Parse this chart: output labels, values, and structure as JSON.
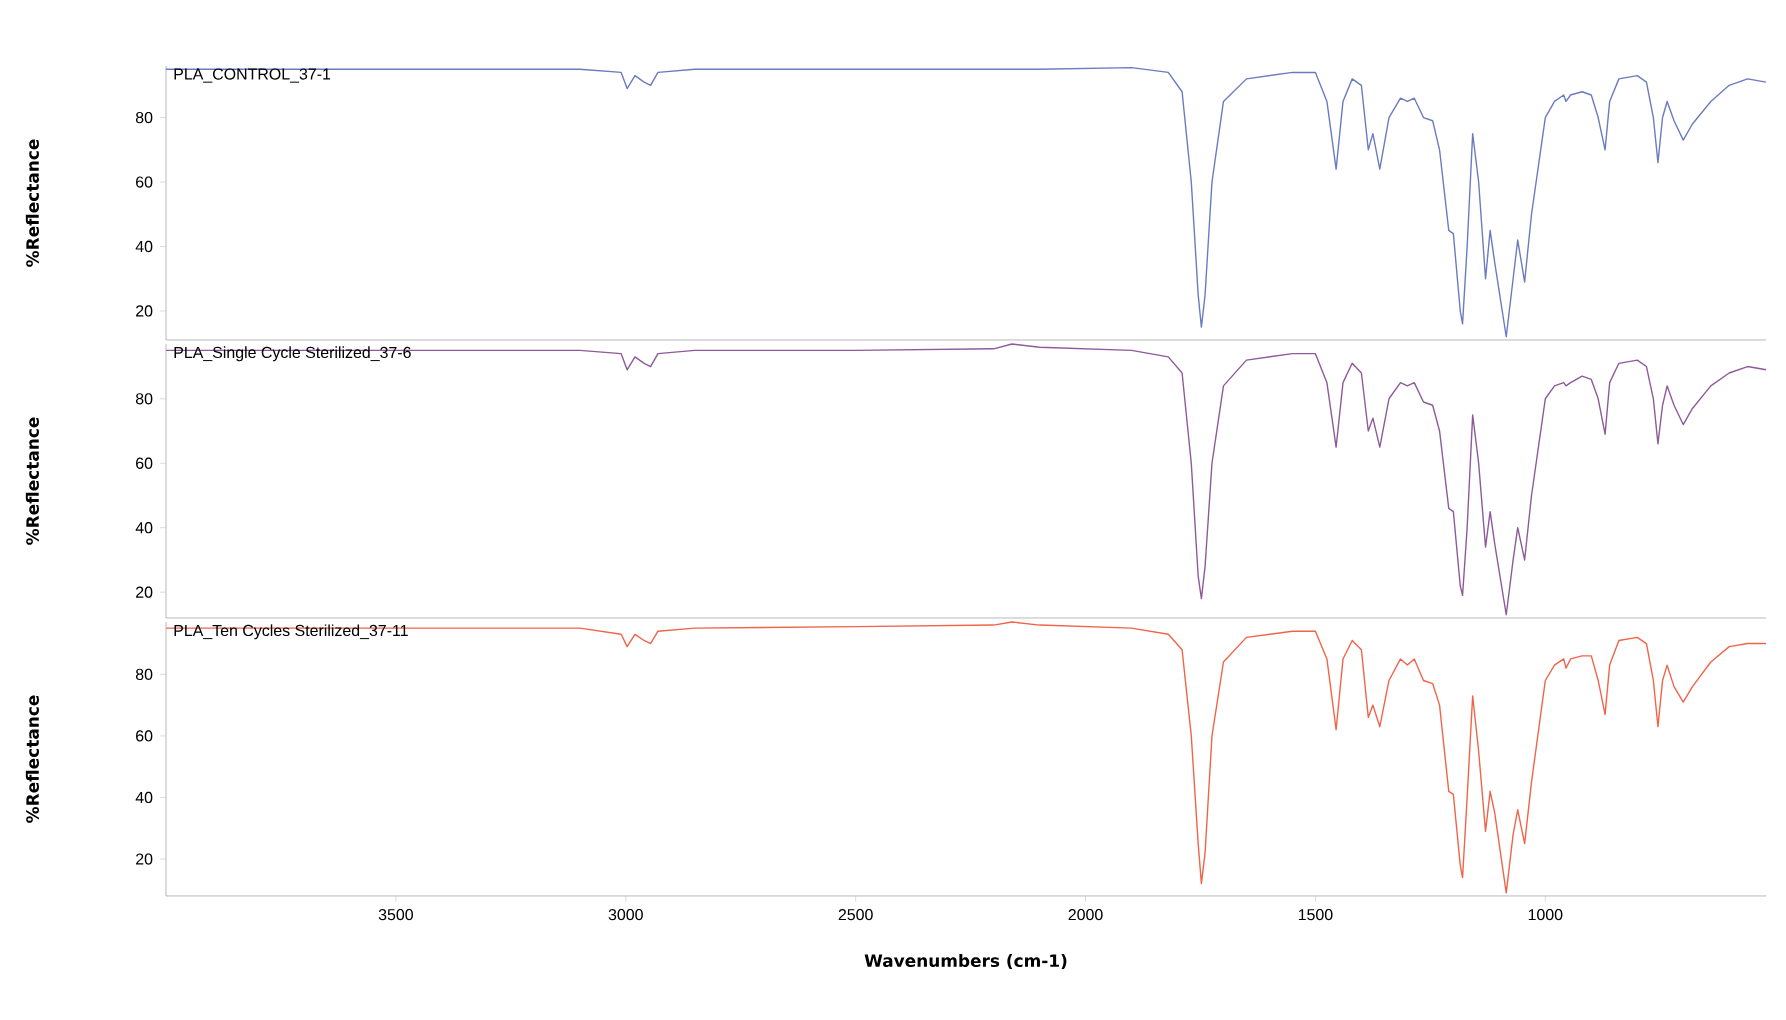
{
  "chart_data": [
    {
      "type": "line",
      "ylabel": "%Reflectance",
      "xlim": [
        4000,
        520
      ],
      "ylim": [
        11,
        96
      ],
      "yticks": [
        20,
        40,
        60,
        80
      ],
      "tick_labels": "y",
      "legend": false,
      "grid": false,
      "x": [
        4000,
        3100,
        3010,
        2997,
        2980,
        2960,
        2946,
        2930,
        2850,
        2500,
        2200,
        2160,
        2100,
        1900,
        1820,
        1790,
        1770,
        1755,
        1748,
        1740,
        1725,
        1700,
        1650,
        1550,
        1500,
        1475,
        1455,
        1440,
        1420,
        1400,
        1385,
        1375,
        1360,
        1340,
        1315,
        1300,
        1285,
        1265,
        1245,
        1230,
        1210,
        1200,
        1185,
        1180,
        1170,
        1158,
        1145,
        1130,
        1120,
        1110,
        1085,
        1070,
        1060,
        1045,
        1030,
        1000,
        980,
        960,
        955,
        945,
        920,
        900,
        885,
        870,
        860,
        840,
        800,
        780,
        765,
        755,
        745,
        735,
        720,
        700,
        680,
        640,
        600,
        560,
        520
      ],
      "series": [
        {
          "name": "PLA_CONTROL_37-1",
          "color": "#6a7bc0",
          "values": [
            95,
            95,
            94,
            89,
            93,
            91,
            90,
            94,
            95,
            95,
            95,
            95,
            95,
            95.5,
            94,
            88,
            60,
            25,
            15,
            25,
            60,
            85,
            92,
            94,
            94,
            85,
            64,
            85,
            92,
            90,
            70,
            75,
            64,
            80,
            86,
            85,
            86,
            80,
            79,
            70,
            45,
            44,
            20,
            16,
            40,
            75,
            60,
            30,
            45,
            35,
            12,
            30,
            42,
            29,
            50,
            80,
            85,
            87,
            85,
            87,
            88,
            87,
            80,
            70,
            85,
            92,
            93,
            91,
            80,
            66,
            80,
            85,
            79,
            73,
            78,
            85,
            90,
            92,
            91
          ]
        }
      ]
    },
    {
      "type": "line",
      "ylabel": "%Reflectance",
      "xlim": [
        4000,
        520
      ],
      "ylim": [
        12,
        97
      ],
      "yticks": [
        20,
        40,
        60,
        80
      ],
      "tick_labels": "y",
      "legend": false,
      "grid": false,
      "x": [
        4000,
        3100,
        3010,
        2997,
        2980,
        2960,
        2946,
        2930,
        2850,
        2500,
        2200,
        2160,
        2100,
        1900,
        1820,
        1790,
        1770,
        1755,
        1748,
        1740,
        1725,
        1700,
        1650,
        1550,
        1500,
        1475,
        1455,
        1440,
        1420,
        1400,
        1385,
        1375,
        1360,
        1340,
        1315,
        1300,
        1285,
        1265,
        1245,
        1230,
        1210,
        1200,
        1185,
        1180,
        1170,
        1158,
        1145,
        1130,
        1120,
        1110,
        1085,
        1070,
        1060,
        1045,
        1030,
        1000,
        980,
        960,
        955,
        945,
        920,
        900,
        885,
        870,
        860,
        840,
        800,
        780,
        765,
        755,
        745,
        735,
        720,
        700,
        680,
        640,
        600,
        560,
        520
      ],
      "series": [
        {
          "name": "PLA_Single Cycle Sterilized_37-6",
          "color": "#8e5a9a",
          "values": [
            95,
            95,
            94,
            89,
            93,
            91,
            90,
            94,
            95,
            95,
            95.5,
            97,
            96,
            95,
            93,
            88,
            60,
            25,
            18,
            28,
            60,
            84,
            92,
            94,
            94,
            85,
            65,
            85,
            91,
            88,
            70,
            74,
            65,
            80,
            85,
            84,
            85,
            79,
            78,
            70,
            46,
            45,
            22,
            19,
            40,
            75,
            60,
            34,
            45,
            35,
            13,
            30,
            40,
            30,
            50,
            80,
            84,
            85,
            84,
            85,
            87,
            86,
            80,
            69,
            85,
            91,
            92,
            90,
            80,
            66,
            78,
            84,
            78,
            72,
            77,
            84,
            88,
            90,
            89
          ]
        }
      ]
    },
    {
      "type": "line",
      "ylabel": "%Reflectance",
      "xlabel": "Wavenumbers (cm-1)",
      "xlim": [
        4000,
        520
      ],
      "ylim": [
        8,
        97
      ],
      "xticks": [
        3500,
        3000,
        2500,
        2000,
        1500,
        1000
      ],
      "yticks": [
        20,
        40,
        60,
        80
      ],
      "legend": false,
      "grid": false,
      "x": [
        4000,
        3100,
        3010,
        2997,
        2980,
        2960,
        2946,
        2930,
        2850,
        2500,
        2200,
        2160,
        2100,
        1900,
        1820,
        1790,
        1770,
        1755,
        1748,
        1740,
        1725,
        1700,
        1650,
        1550,
        1500,
        1475,
        1455,
        1440,
        1420,
        1400,
        1385,
        1375,
        1360,
        1340,
        1315,
        1300,
        1285,
        1265,
        1245,
        1230,
        1210,
        1200,
        1185,
        1180,
        1170,
        1158,
        1145,
        1130,
        1120,
        1110,
        1085,
        1070,
        1060,
        1045,
        1030,
        1000,
        980,
        960,
        955,
        945,
        920,
        900,
        885,
        870,
        860,
        840,
        800,
        780,
        765,
        755,
        745,
        735,
        720,
        700,
        680,
        640,
        600,
        560,
        520
      ],
      "series": [
        {
          "name": "PLA_Ten Cycles Sterilized_37-11",
          "color": "#f0644a",
          "values": [
            95,
            95,
            93,
            89,
            93,
            91,
            90,
            94,
            95,
            95.5,
            96,
            97,
            96,
            95,
            93,
            88,
            60,
            25,
            12,
            22,
            60,
            84,
            92,
            94,
            94,
            85,
            62,
            85,
            91,
            88,
            66,
            70,
            63,
            78,
            85,
            83,
            85,
            78,
            77,
            70,
            42,
            41,
            18,
            14,
            40,
            73,
            55,
            29,
            42,
            35,
            9,
            28,
            36,
            25,
            45,
            78,
            83,
            85,
            82,
            85,
            86,
            86,
            78,
            67,
            83,
            91,
            92,
            90,
            78,
            63,
            78,
            83,
            76,
            71,
            76,
            84,
            89,
            90,
            90
          ]
        }
      ]
    }
  ]
}
